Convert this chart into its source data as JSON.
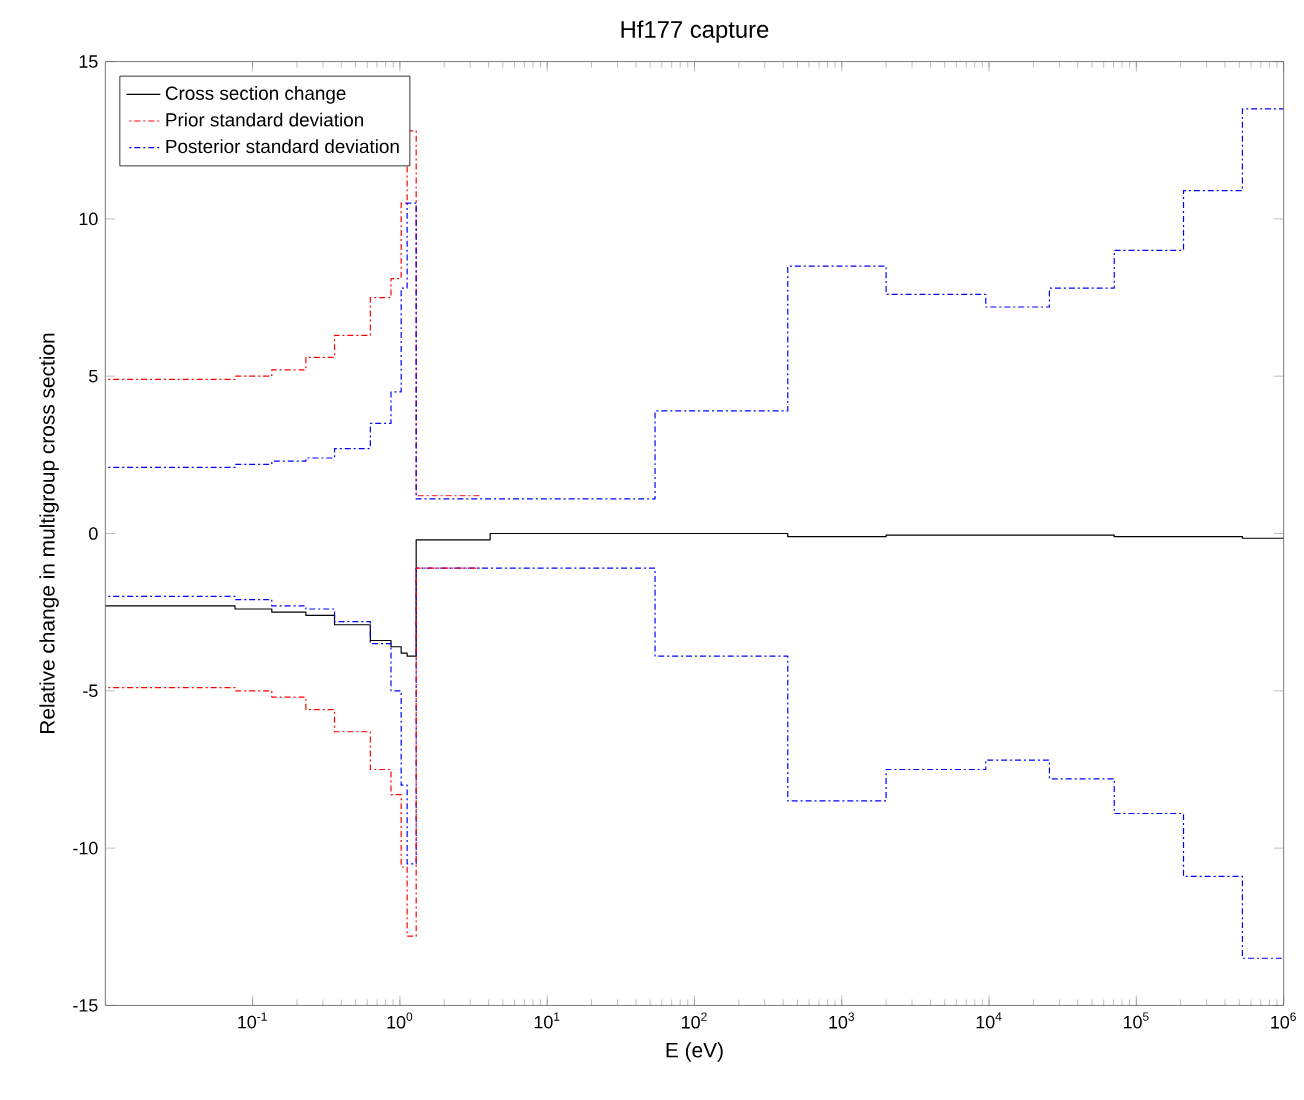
{
  "chart_data": {
    "type": "step",
    "title": "Hf177 capture",
    "xlabel": "E (eV)",
    "ylabel": "Relative change in multigroup cross section",
    "log": "x",
    "xlim": [
      0.01,
      1000000
    ],
    "ylim": [
      -15,
      15
    ],
    "xticks": [
      {
        "value": 0.1,
        "label": "10$^{-1}$"
      },
      {
        "value": 1,
        "label": "10$^{0}$"
      },
      {
        "value": 10,
        "label": "10$^{1}$"
      },
      {
        "value": 100,
        "label": "10$^{2}$"
      },
      {
        "value": 1000,
        "label": "10$^{3}$"
      },
      {
        "value": 10000,
        "label": "10$^{4}$"
      },
      {
        "value": 100000,
        "label": "10$^{5}$"
      },
      {
        "value": 1000000,
        "label": "10$^{6}$"
      }
    ],
    "yticks": [
      -15,
      -10,
      -5,
      0,
      5,
      10,
      15
    ],
    "grid": false,
    "legend": "top left",
    "marker": "none",
    "series": [
      {
        "name": "Cross section change",
        "color": "#000000",
        "line_style": "solid",
        "x": [
          0.01,
          0.076,
          0.135,
          0.23,
          0.36,
          0.63,
          0.87,
          1.02,
          1.12,
          1.29,
          4.1,
          430,
          2000,
          9500,
          70800,
          525000,
          1000000
        ],
        "values": [
          -2.3,
          -2.4,
          -2.5,
          -2.6,
          -2.9,
          -3.4,
          -3.6,
          -3.8,
          -3.9,
          -0.2,
          0.0,
          -0.1,
          -0.05,
          -0.05,
          -0.1,
          -0.15,
          -0.15
        ]
      },
      {
        "name": "Prior standard deviation",
        "color": "#ff0000",
        "line_style": "dashdot",
        "x": [
          0.01,
          0.076,
          0.135,
          0.23,
          0.36,
          0.63,
          0.87,
          1.02,
          1.12,
          1.29,
          3.5
        ],
        "values": [
          4.9,
          5.0,
          5.2,
          5.6,
          6.3,
          7.5,
          8.1,
          10.5,
          12.8,
          1.2,
          1.2
        ]
      },
      {
        "name": "Posterior standard deviation",
        "color": "#0000ff",
        "line_style": "dashdot",
        "x": [
          0.01,
          0.076,
          0.135,
          0.23,
          0.36,
          0.63,
          0.87,
          1.02,
          1.12,
          1.29,
          3.5,
          54,
          430,
          2000,
          9500,
          25700,
          70800,
          209000,
          525000,
          1000000
        ],
        "values": [
          2.1,
          2.2,
          2.3,
          2.4,
          2.7,
          3.5,
          4.5,
          7.8,
          10.5,
          1.1,
          1.1,
          3.9,
          8.5,
          7.6,
          7.2,
          7.8,
          9.0,
          10.9,
          13.5,
          13.5
        ]
      },
      {
        "color": "#0000ff",
        "line_style": "dashdot",
        "x": [
          0.01,
          0.076,
          0.135,
          0.23,
          0.36,
          0.63,
          0.87,
          1.02,
          1.12,
          1.29,
          3.5,
          54,
          430,
          2000,
          9500,
          25700,
          70800,
          209000,
          525000,
          1000000
        ],
        "values": [
          -2.0,
          -2.1,
          -2.3,
          -2.4,
          -2.8,
          -3.5,
          -5.0,
          -8.0,
          -10.5,
          -1.1,
          -1.1,
          -3.9,
          -8.5,
          -7.5,
          -7.2,
          -7.8,
          -8.9,
          -10.9,
          -13.5,
          -13.5
        ]
      },
      {
        "color": "#ff0000",
        "line_style": "dashdot",
        "x": [
          0.01,
          0.076,
          0.135,
          0.23,
          0.36,
          0.63,
          0.87,
          1.02,
          1.12,
          1.29,
          3.5
        ],
        "values": [
          -4.9,
          -5.0,
          -5.2,
          -5.6,
          -6.3,
          -7.5,
          -8.3,
          -10.6,
          -12.8,
          -1.1,
          -1.1
        ]
      }
    ]
  }
}
